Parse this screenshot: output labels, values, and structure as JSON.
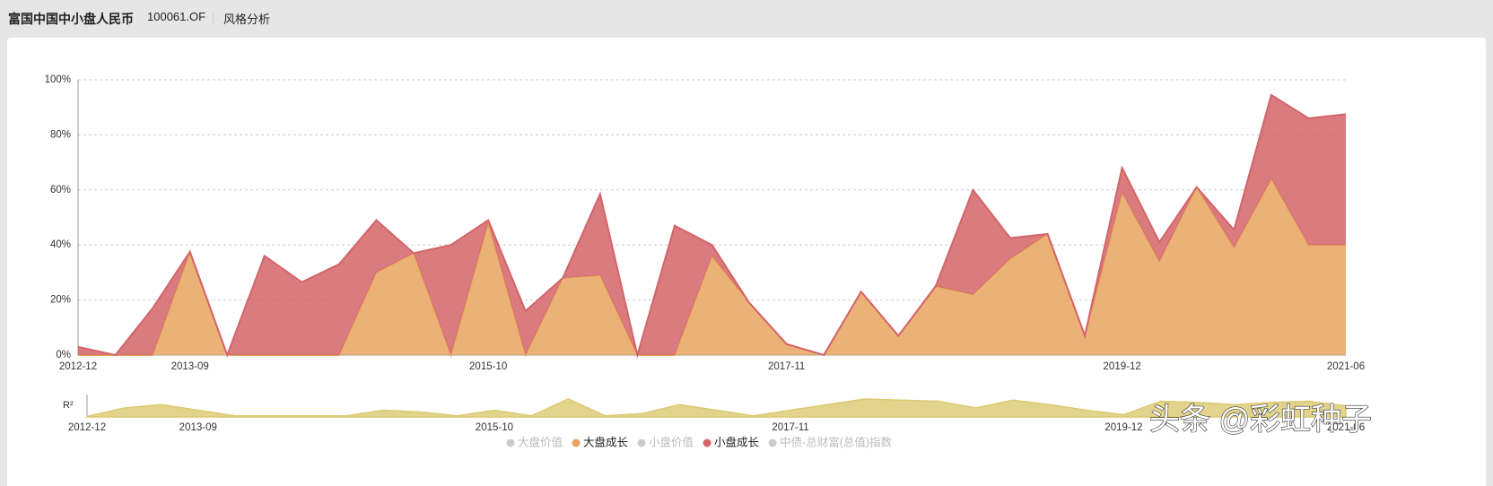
{
  "header": {
    "title": "富国中国中小盘人民币",
    "code": "100061.OF",
    "tab": "风格分析"
  },
  "watermark": "头条 @彩虹种子",
  "chart_data": {
    "type": "area",
    "stacked": true,
    "grid": true,
    "categories": [
      "2012-12",
      null,
      null,
      "2013-09",
      null,
      null,
      null,
      null,
      null,
      null,
      null,
      "2015-10",
      null,
      null,
      null,
      null,
      null,
      null,
      null,
      "2017-11",
      null,
      null,
      null,
      null,
      null,
      null,
      null,
      null,
      "2019-12",
      null,
      null,
      null,
      null,
      null,
      "2021-06"
    ],
    "ylim": [
      0,
      100
    ],
    "yticks": [
      {
        "value": 0,
        "label": "0%"
      },
      {
        "value": 20,
        "label": "20%"
      },
      {
        "value": 40,
        "label": "40%"
      },
      {
        "value": 60,
        "label": "60%"
      },
      {
        "value": 80,
        "label": "80%"
      },
      {
        "value": 100,
        "label": "100%"
      }
    ],
    "series": [
      {
        "name": "大盘价值",
        "color": "#cccccc",
        "hidden": true
      },
      {
        "name": "大盘成长",
        "color": "#e8a55f",
        "values": [
          0,
          0,
          0,
          37.5,
          0,
          0,
          0,
          0,
          30,
          37,
          0,
          48,
          0,
          28,
          29,
          0,
          0,
          36,
          19,
          4,
          0,
          23,
          7,
          25,
          22,
          35,
          44,
          7,
          59,
          34,
          61,
          39,
          64,
          40,
          40
        ]
      },
      {
        "name": "小盘价值",
        "color": "#cccccc",
        "hidden": true
      },
      {
        "name": "小盘成长",
        "color": "#d4646a",
        "values": [
          3,
          0,
          17,
          0,
          0,
          36,
          26.5,
          33,
          19,
          0,
          40,
          1,
          16,
          0,
          29.5,
          0,
          47,
          4,
          0,
          0,
          0,
          0,
          0,
          0,
          38,
          7.5,
          0,
          0,
          9,
          7,
          0,
          6.5,
          30.5,
          46,
          47.5
        ]
      },
      {
        "name": "中债-总财富(总值)指数",
        "color": "#cccccc",
        "hidden": true
      }
    ],
    "r2": {
      "label": "R²",
      "color": "#dcc970",
      "ylim": [
        0,
        1
      ],
      "values": [
        0.02,
        0.4,
        0.55,
        0.3,
        0.05,
        0.05,
        0.05,
        0.05,
        0.3,
        0.22,
        0.05,
        0.3,
        0.05,
        0.8,
        0.05,
        0.15,
        0.55,
        0.3,
        0.05,
        0.3,
        0.55,
        0.8,
        0.75,
        0.7,
        0.4,
        0.75,
        0.55,
        0.3,
        0.1,
        0.7,
        0.65,
        0.55,
        0.65,
        0.7,
        0.5
      ]
    }
  }
}
